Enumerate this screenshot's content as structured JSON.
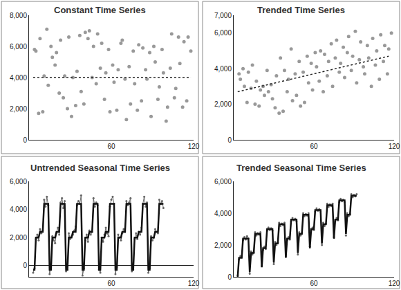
{
  "chart_data": [
    {
      "type": "scatter",
      "title": "Constant Time Series",
      "x": [
        4,
        5,
        7,
        8,
        10,
        11,
        13,
        14,
        16,
        17,
        19,
        20,
        22,
        23,
        25,
        26,
        28,
        29,
        31,
        32,
        34,
        35,
        37,
        38,
        40,
        41,
        43,
        44,
        46,
        47,
        49,
        50,
        52,
        53,
        55,
        56,
        58,
        59,
        61,
        62,
        64,
        65,
        67,
        68,
        70,
        71,
        73,
        74,
        76,
        77,
        79,
        80,
        82,
        83,
        85,
        86,
        88,
        89,
        91,
        92,
        94,
        95,
        97,
        98,
        100,
        101,
        103,
        104,
        106,
        107,
        109,
        110,
        112,
        113,
        115,
        116,
        118
      ],
      "series": [
        {
          "type": "scatter",
          "color": "#999999",
          "marker": "circle",
          "values": [
            5800,
            5700,
            1700,
            6500,
            1800,
            4100,
            7100,
            3500,
            6000,
            5300,
            4800,
            5600,
            3000,
            6400,
            2700,
            4100,
            2000,
            6600,
            1500,
            4000,
            2200,
            4400,
            6700,
            3100,
            2300,
            6900,
            6500,
            7000,
            4000,
            6000,
            3600,
            6800,
            4600,
            6200,
            2600,
            4300,
            5800,
            1800,
            4800,
            3700,
            1900,
            4500,
            6200,
            6400,
            3900,
            1300,
            4700,
            2300,
            5700,
            3600,
            1900,
            6100,
            2500,
            5900,
            4500,
            3900,
            5600,
            1500,
            6000,
            5000,
            2600,
            3400,
            5800,
            4300,
            1200,
            2100,
            4600,
            6800,
            2700,
            3300,
            6600,
            4900,
            2100,
            6300,
            2500,
            6600,
            5700
          ]
        },
        {
          "type": "line",
          "color": "#222222",
          "line_style": "dotted",
          "x": [
            3,
            118
          ],
          "values": [
            4000,
            4000
          ]
        }
      ],
      "xlim": [
        0,
        120
      ],
      "xticks": [
        60,
        120
      ],
      "ylim": [
        0,
        8000
      ],
      "yticks": [
        0,
        {
          "value": 2000,
          "label": "2,000"
        },
        {
          "value": 4000,
          "label": "4,000"
        },
        {
          "value": 6000,
          "label": "6,000"
        },
        {
          "value": 8000,
          "label": "8,000"
        }
      ],
      "grid": false
    },
    {
      "type": "scatter",
      "title": "Trended Time Series",
      "x": [
        4,
        5,
        7,
        8,
        10,
        11,
        13,
        14,
        16,
        17,
        19,
        20,
        22,
        23,
        25,
        26,
        28,
        29,
        31,
        32,
        34,
        35,
        37,
        38,
        40,
        41,
        43,
        44,
        46,
        47,
        49,
        50,
        52,
        53,
        55,
        56,
        58,
        59,
        61,
        62,
        64,
        65,
        67,
        68,
        70,
        71,
        73,
        74,
        76,
        77,
        79,
        80,
        82,
        83,
        85,
        86,
        88,
        89,
        91,
        92,
        94,
        95,
        97,
        98,
        100,
        101,
        103,
        104,
        106,
        107,
        109,
        110,
        112,
        113,
        115,
        116,
        118
      ],
      "series": [
        {
          "type": "scatter",
          "color": "#999999",
          "marker": "circle",
          "values": [
            3700,
            3400,
            4000,
            3000,
            2100,
            3800,
            2900,
            4200,
            2000,
            3300,
            1900,
            2800,
            3000,
            2500,
            3900,
            2700,
            3100,
            2300,
            1800,
            3600,
            1500,
            4600,
            1600,
            3900,
            2700,
            3400,
            5100,
            2200,
            3700,
            2500,
            4400,
            1900,
            3800,
            2100,
            4700,
            3200,
            4300,
            2800,
            4900,
            4100,
            3300,
            5000,
            2700,
            4800,
            3600,
            4400,
            5400,
            3000,
            4600,
            5600,
            3800,
            4300,
            5200,
            3500,
            4900,
            5800,
            3900,
            4700,
            6100,
            3200,
            4500,
            5500,
            4100,
            3700,
            5300,
            4600,
            3000,
            5700,
            4200,
            5000,
            3400,
            5900,
            4400,
            5300,
            3700,
            5100,
            6000
          ]
        },
        {
          "type": "line",
          "color": "#222222",
          "line_style": "dotted",
          "x": [
            3,
            116
          ],
          "values": [
            2700,
            4700
          ]
        }
      ],
      "xlim": [
        0,
        120
      ],
      "xticks": [
        60,
        120
      ],
      "ylim": [
        0,
        7000
      ],
      "yticks": [
        0,
        {
          "value": 2000,
          "label": "2,000"
        },
        {
          "value": 4000,
          "label": "4,000"
        },
        {
          "value": 6000,
          "label": "6,000"
        },
        {
          "value": 7000,
          "label": "7,000"
        }
      ],
      "grid": false
    },
    {
      "type": "line",
      "title": "Untrended Seasonal Time Series",
      "x": [
        3,
        4,
        5,
        6,
        7,
        8,
        9,
        10,
        11,
        12,
        13,
        14,
        15,
        16,
        17,
        18,
        19,
        20,
        21,
        22,
        23,
        24,
        25,
        26,
        27,
        28,
        29,
        30,
        31,
        32,
        33,
        34,
        35,
        36,
        37,
        38,
        39,
        40,
        41,
        42,
        43,
        44,
        45,
        46,
        47,
        48,
        49,
        50,
        51,
        52,
        53,
        54,
        55,
        56,
        57,
        58,
        59,
        60,
        61,
        62,
        63,
        64,
        65,
        66,
        67,
        68,
        69,
        70,
        71,
        72,
        73,
        74,
        75,
        76,
        77,
        78,
        79,
        80,
        81,
        82,
        83,
        84,
        85,
        86,
        87,
        88,
        89,
        90,
        91,
        92,
        93,
        94,
        95,
        96,
        97,
        98
      ],
      "series": [
        {
          "type": "line",
          "color": "#666666",
          "marker": "circle",
          "line_style": "solid",
          "values": [
            -500,
            -200,
            1900,
            2200,
            1800,
            2600,
            2300,
            2500,
            4700,
            4200,
            4900,
            4300,
            -600,
            -100,
            2100,
            1800,
            1600,
            2300,
            2700,
            2200,
            4500,
            4800,
            4100,
            4600,
            -400,
            -300,
            2300,
            1900,
            2100,
            2200,
            2500,
            2800,
            4300,
            4600,
            4400,
            5000,
            -700,
            -200,
            1800,
            2200,
            1700,
            2500,
            2200,
            2400,
            4800,
            4200,
            4500,
            4300,
            -300,
            -500,
            2000,
            1700,
            2200,
            2700,
            2300,
            2100,
            4200,
            4700,
            4900,
            4400,
            -600,
            -100,
            2200,
            2000,
            1800,
            2300,
            2600,
            2400,
            4600,
            4300,
            4500,
            4800,
            -400,
            -300,
            1900,
            2300,
            1900,
            2400,
            2200,
            2700,
            4400,
            4900,
            4200,
            4500,
            -500,
            -200,
            2100,
            1800,
            2000,
            2600,
            2400,
            2300,
            4700,
            4400,
            4600,
            4100
          ]
        },
        {
          "type": "line",
          "color": "#111111",
          "line_style": "solid",
          "values": [
            -300,
            -300,
            2000,
            2000,
            2000,
            2400,
            2400,
            2400,
            4400,
            4400,
            4400,
            4400,
            -300,
            -300,
            2000,
            2000,
            2000,
            2400,
            2400,
            2400,
            4400,
            4400,
            4400,
            4400,
            -300,
            -300,
            2000,
            2000,
            2000,
            2400,
            2400,
            2400,
            4400,
            4400,
            4400,
            4400,
            -300,
            -300,
            2000,
            2000,
            2000,
            2400,
            2400,
            2400,
            4400,
            4400,
            4400,
            4400,
            -300,
            -300,
            2000,
            2000,
            2000,
            2400,
            2400,
            2400,
            4400,
            4400,
            4400,
            4400,
            -300,
            -300,
            2000,
            2000,
            2000,
            2400,
            2400,
            2400,
            4400,
            4400,
            4400,
            4400,
            -300,
            -300,
            2000,
            2000,
            2000,
            2400,
            2400,
            2400,
            4400,
            4400,
            4400,
            4400,
            -300,
            -300,
            2000,
            2000,
            2000,
            2400,
            2400,
            2400,
            4400,
            4400,
            4400,
            4400
          ]
        }
      ],
      "xlim": [
        0,
        120
      ],
      "xticks": [
        60,
        120
      ],
      "ylim": [
        -800,
        6000
      ],
      "yticks": [
        0,
        {
          "value": 2000,
          "label": "2,000"
        },
        {
          "value": 4000,
          "label": "4,000"
        },
        {
          "value": 6000,
          "label": "6,000"
        }
      ],
      "grid": false
    },
    {
      "type": "line",
      "title": "Trended Seasonal Time Series",
      "x": [
        3,
        4,
        5,
        6,
        7,
        8,
        9,
        10,
        11,
        12,
        13,
        14,
        15,
        16,
        17,
        18,
        19,
        20,
        21,
        22,
        23,
        24,
        25,
        26,
        27,
        28,
        29,
        30,
        31,
        32,
        33,
        34,
        35,
        36,
        37,
        38,
        39,
        40,
        41,
        42,
        43,
        44,
        45,
        46,
        47,
        48,
        49,
        50,
        51,
        52,
        53,
        54,
        55,
        56,
        57,
        58,
        59,
        60,
        61,
        62,
        63,
        64,
        65,
        66,
        67,
        68,
        69,
        70,
        71,
        72,
        73,
        74,
        75,
        76,
        77,
        78,
        79,
        80,
        81,
        82,
        83,
        84,
        85,
        86,
        87,
        88,
        89,
        90,
        91,
        92
      ],
      "series": [
        {
          "type": "line",
          "color": "#666666",
          "marker": "circle",
          "line_style": "solid",
          "values": [
            100,
            1100,
            1300,
            1250,
            2300,
            2500,
            2350,
            2550,
            2400,
            200,
            1600,
            1400,
            1550,
            2800,
            2600,
            2750,
            2650,
            2800,
            700,
            1700,
            1900,
            1750,
            2900,
            3100,
            2950,
            3050,
            2900,
            800,
            2200,
            2000,
            2150,
            3400,
            3200,
            3350,
            3250,
            3400,
            1300,
            2300,
            2500,
            2350,
            3500,
            3700,
            3550,
            3650,
            3500,
            1400,
            2800,
            2600,
            2750,
            4000,
            3800,
            3950,
            3850,
            4000,
            1900,
            2900,
            3100,
            2950,
            4100,
            4300,
            4150,
            4250,
            4100,
            2000,
            3400,
            3200,
            3350,
            4600,
            4400,
            4550,
            4450,
            4600,
            2500,
            3500,
            3700,
            3550,
            4700,
            4900,
            4750,
            4850,
            4700,
            2600,
            4000,
            3800,
            3950,
            5200,
            5000,
            5150,
            5050,
            5200
          ]
        },
        {
          "type": "line",
          "color": "#111111",
          "line_style": "solid",
          "values": [
            0,
            1200,
            1200,
            1200,
            2400,
            2400,
            2400,
            2400,
            2400,
            300,
            1500,
            1500,
            1500,
            2700,
            2700,
            2700,
            2700,
            2700,
            600,
            1800,
            1800,
            1800,
            3000,
            3000,
            3000,
            3000,
            3000,
            900,
            2100,
            2100,
            2100,
            3300,
            3300,
            3300,
            3300,
            3300,
            1200,
            2400,
            2400,
            2400,
            3600,
            3600,
            3600,
            3600,
            3600,
            1500,
            2700,
            2700,
            2700,
            3900,
            3900,
            3900,
            3900,
            3900,
            1800,
            3000,
            3000,
            3000,
            4200,
            4200,
            4200,
            4200,
            4200,
            2100,
            3300,
            3300,
            3300,
            4500,
            4500,
            4500,
            4500,
            4500,
            2400,
            3600,
            3600,
            3600,
            4800,
            4800,
            4800,
            4800,
            4800,
            2700,
            3900,
            3900,
            3900,
            5100,
            5100,
            5100,
            5100,
            5100
          ]
        }
      ],
      "xlim": [
        0,
        120
      ],
      "xticks": [
        60,
        120
      ],
      "ylim": [
        0,
        6000
      ],
      "yticks": [
        0,
        {
          "value": 2000,
          "label": "2,000"
        },
        {
          "value": 4000,
          "label": "4,000"
        },
        {
          "value": 6000,
          "label": "6,000"
        }
      ],
      "grid": false
    }
  ]
}
